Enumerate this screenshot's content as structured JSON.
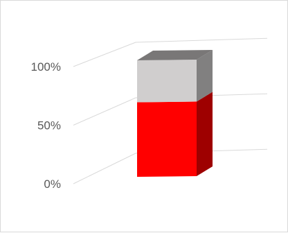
{
  "chart_data": {
    "type": "bar",
    "subtype": "3d-stacked-100-percent-column",
    "categories": [
      ""
    ],
    "series": [
      {
        "values": [
          0.64
        ],
        "color": "#ff0000"
      },
      {
        "values": [
          0.36
        ],
        "color": "#d0cece"
      }
    ],
    "ylim": [
      0,
      1
    ],
    "y_ticks": [
      "0%",
      "50%",
      "100%"
    ],
    "grid": true,
    "legend": "none",
    "title": "",
    "xlabel": "",
    "ylabel": ""
  }
}
